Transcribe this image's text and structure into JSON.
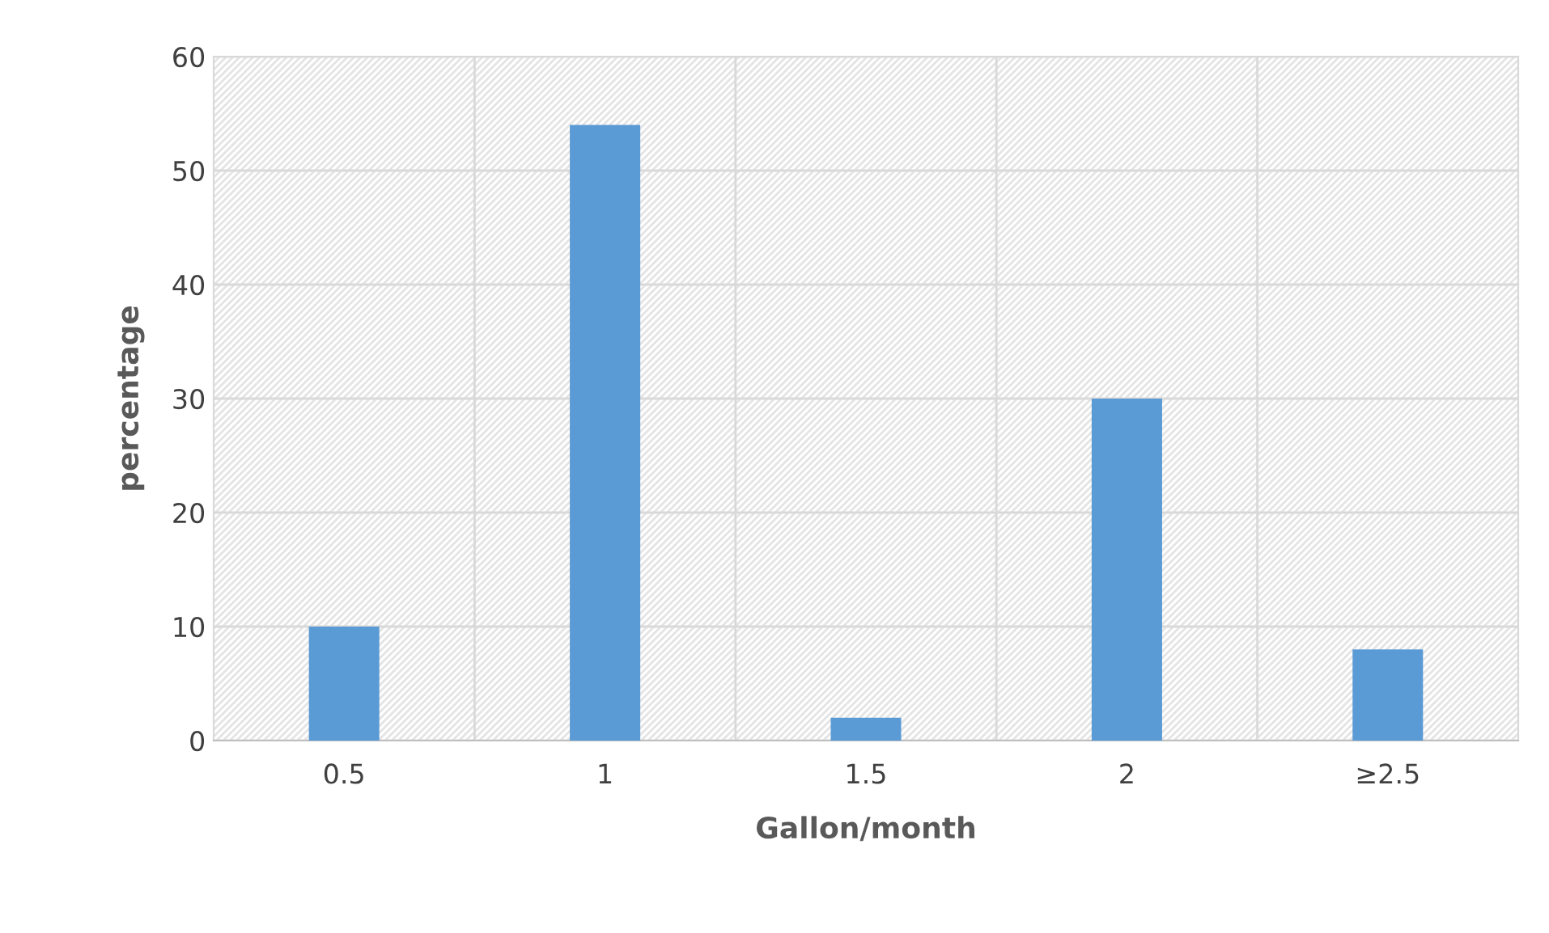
{
  "chart_data": {
    "type": "bar",
    "xlabel": "Gallon/month",
    "ylabel": "percentage",
    "categories": [
      "0.5",
      "1",
      "1.5",
      "2",
      "≥2.5"
    ],
    "values": [
      10,
      54,
      2,
      30,
      8
    ],
    "color": "#5b9bd5",
    "ylim": [
      0,
      60
    ],
    "yticks": [
      0,
      10,
      20,
      30,
      40,
      50,
      60
    ],
    "grid": true
  }
}
